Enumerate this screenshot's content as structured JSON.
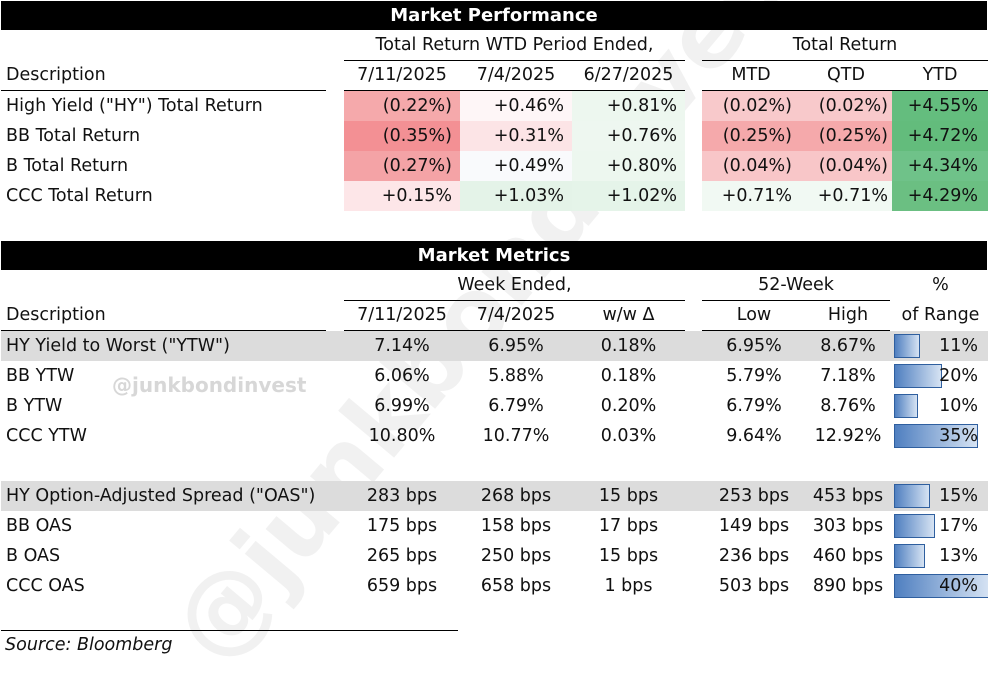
{
  "performance": {
    "title": "Market Performance",
    "wtd_header": "Total Return WTD Period Ended,",
    "tr_header": "Total Return",
    "description_header": "Description",
    "columns": [
      "7/11/2025",
      "7/4/2025",
      "6/27/2025",
      "MTD",
      "QTD",
      "YTD"
    ],
    "rows": [
      {
        "label": "High Yield (\"HY\") Total Return",
        "values": [
          "(0.22%)",
          "+0.46%",
          "+0.81%",
          "(0.02%)",
          "(0.02%)",
          "+4.55%"
        ]
      },
      {
        "label": "BB Total Return",
        "values": [
          "(0.35%)",
          "+0.31%",
          "+0.76%",
          "(0.25%)",
          "(0.25%)",
          "+4.72%"
        ]
      },
      {
        "label": "B Total Return",
        "values": [
          "(0.27%)",
          "+0.49%",
          "+0.80%",
          "(0.04%)",
          "(0.04%)",
          "+4.34%"
        ]
      },
      {
        "label": "CCC Total Return",
        "values": [
          "+0.15%",
          "+1.03%",
          "+1.02%",
          "+0.71%",
          "+0.71%",
          "+4.29%"
        ]
      }
    ],
    "cell_colors": [
      [
        "#f5a9ab",
        "#fef6f7",
        "#edf7ef",
        "#f8c9cb",
        "#f8c9cb",
        "#64bd7e"
      ],
      [
        "#f39094",
        "#fce4e6",
        "#eef7f0",
        "#f5a9ab",
        "#f5a9ab",
        "#63bc7c"
      ],
      [
        "#f4a3a6",
        "#f9fafc",
        "#edf7ef",
        "#f8c6c8",
        "#f8c6c8",
        "#6fc289"
      ],
      [
        "#fde6e8",
        "#e4f3e8",
        "#e5f4e9",
        "#f1f9f3",
        "#f1f9f3",
        "#6bbf82"
      ]
    ]
  },
  "metrics": {
    "title": "Market Metrics",
    "week_header": "Week Ended,",
    "week52_header": "52-Week",
    "pct_header": "%",
    "description_header": "Description",
    "columns": [
      "7/11/2025",
      "7/4/2025",
      "w/w Δ",
      "Low",
      "High",
      "of Range"
    ],
    "rows": [
      {
        "label": "HY Yield to Worst (\"YTW\")",
        "values": [
          "7.14%",
          "6.95%",
          "0.18%",
          "6.95%",
          "8.67%",
          "11%"
        ],
        "range": 0.11,
        "shaded": true
      },
      {
        "label": "BB YTW",
        "values": [
          "6.06%",
          "5.88%",
          "0.18%",
          "5.79%",
          "7.18%",
          "20%"
        ],
        "range": 0.2,
        "shaded": false
      },
      {
        "label": "B YTW",
        "values": [
          "6.99%",
          "6.79%",
          "0.20%",
          "6.79%",
          "8.76%",
          "10%"
        ],
        "range": 0.1,
        "shaded": false
      },
      {
        "label": "CCC YTW",
        "values": [
          "10.80%",
          "10.77%",
          "0.03%",
          "9.64%",
          "12.92%",
          "35%"
        ],
        "range": 0.35,
        "shaded": false
      },
      {
        "label": "HY Option-Adjusted Spread (\"OAS\")",
        "values": [
          "283 bps",
          "268 bps",
          "15 bps",
          "253 bps",
          "453 bps",
          "15%"
        ],
        "range": 0.15,
        "shaded": true
      },
      {
        "label": "BB OAS",
        "values": [
          "175 bps",
          "158 bps",
          "17 bps",
          "149 bps",
          "303 bps",
          "17%"
        ],
        "range": 0.17,
        "shaded": false
      },
      {
        "label": "B OAS",
        "values": [
          "265 bps",
          "250 bps",
          "15 bps",
          "236 bps",
          "460 bps",
          "13%"
        ],
        "range": 0.13,
        "shaded": false
      },
      {
        "label": "CCC OAS",
        "values": [
          "659 bps",
          "658 bps",
          "1 bps",
          "503 bps",
          "890 bps",
          "40%"
        ],
        "range": 0.4,
        "shaded": false
      }
    ]
  },
  "watermarks": {
    "big": "@junkbondinvest",
    "small": "@junkbondinvest"
  },
  "source": "Source: Bloomberg"
}
